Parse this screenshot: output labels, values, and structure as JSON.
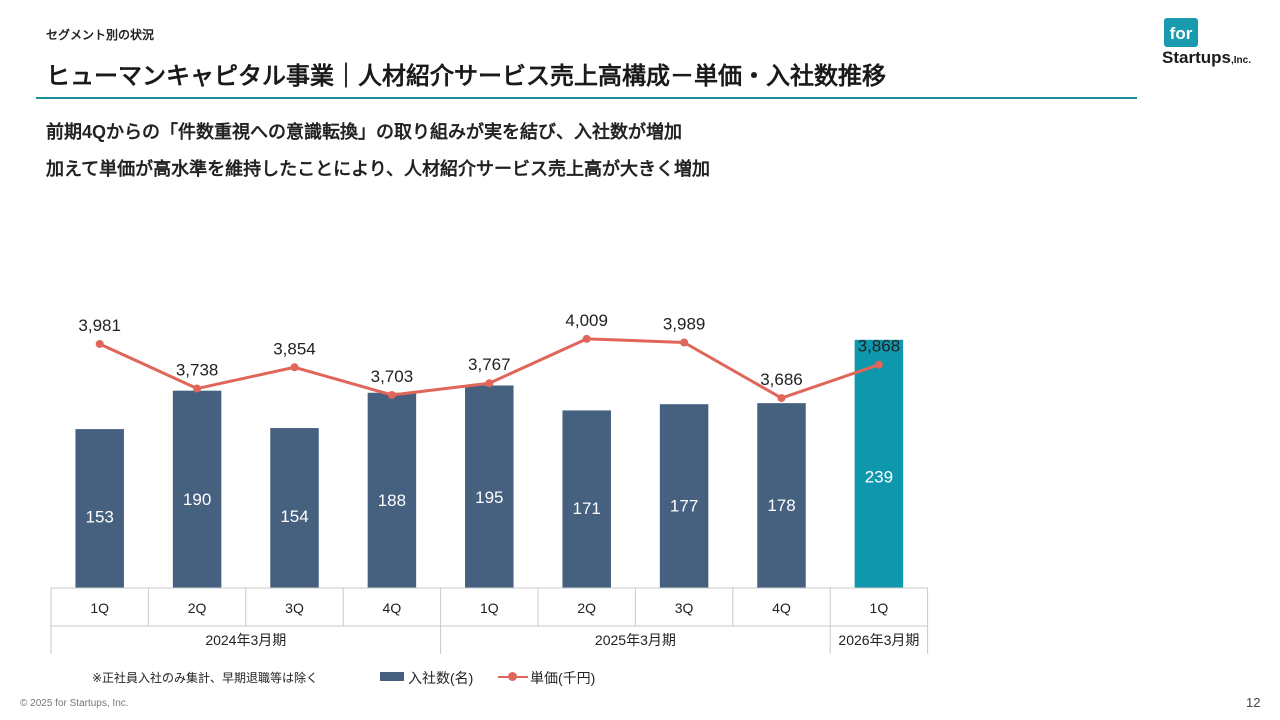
{
  "section_label": "セグメント別の状況",
  "page_title": "ヒューマンキャピタル事業｜人材紹介サービス売上高構成－単価・入社数推移",
  "lead_lines": [
    "前期4Qからの「件数重視への意識転換」の取り組みが実を結び、入社数が増加",
    "加えて単価が高水準を維持したことにより、人材紹介サービス売上高が大きく増加"
  ],
  "logo": {
    "badge": "for",
    "word": "Startups",
    "suffix": ",Inc."
  },
  "colors": {
    "bar": "#46607f",
    "bar_highlight": "#0f97ad",
    "line": "#e0665a",
    "accent_rule": "#1b8f97"
  },
  "chart_data": {
    "type": "bar",
    "categories": [
      "1Q",
      "2Q",
      "3Q",
      "4Q",
      "1Q",
      "2Q",
      "3Q",
      "4Q",
      "1Q"
    ],
    "groups": [
      {
        "label": "2024年3月期",
        "count": 4
      },
      {
        "label": "2025年3月期",
        "count": 4
      },
      {
        "label": "2026年3月期",
        "count": 1
      }
    ],
    "series": [
      {
        "name": "入社数(名)",
        "type": "bar",
        "values": [
          153,
          190,
          154,
          188,
          195,
          171,
          177,
          178,
          239
        ],
        "highlight_index": 8
      },
      {
        "name": "単価(千円)",
        "type": "line",
        "values": [
          3981,
          3738,
          3854,
          3703,
          3767,
          4009,
          3989,
          3686,
          3868
        ]
      }
    ],
    "line_labels": [
      "3,981",
      "3,738",
      "3,854",
      "3,703",
      "3,767",
      "4,009",
      "3,989",
      "3,686",
      "3,868"
    ],
    "legend_position": "bottom",
    "grid": false
  },
  "footnote": "※正社員入社のみ集計、早期退職等は除く",
  "copyright": "© 2025 for Startups, Inc.",
  "page_number": "12"
}
